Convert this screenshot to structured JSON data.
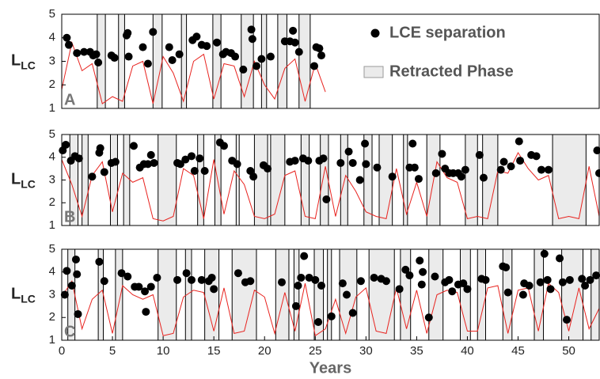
{
  "chart_data": [
    {
      "type": "line",
      "panel_label": "A",
      "ylabel": "L",
      "ylabel_sub": "LC",
      "xlim": [
        0,
        53
      ],
      "ylim": [
        1,
        5
      ],
      "yticks": [
        1,
        2,
        3,
        4,
        5
      ],
      "line": {
        "color": "#e8231f",
        "x": [
          0,
          1,
          2,
          3,
          4,
          5,
          6,
          7,
          8,
          9,
          10,
          11,
          12,
          13,
          14,
          15,
          16,
          17,
          18,
          19,
          20,
          21,
          22,
          23,
          24,
          25,
          26
        ],
        "values": [
          1.8,
          3.8,
          2.6,
          2.9,
          1.2,
          1.5,
          1.3,
          2.8,
          3.0,
          1.2,
          3.2,
          2.5,
          1.3,
          3.0,
          3.3,
          1.4,
          2.9,
          2.8,
          1.5,
          3.0,
          2.0,
          1.4,
          2.7,
          3.1,
          1.3,
          2.9,
          1.7
        ]
      },
      "points": {
        "name": "LCE separation",
        "color": "#000000",
        "x": [
          0.5,
          0.7,
          1.5,
          2.2,
          2.8,
          3.1,
          3.4,
          3.6,
          4.9,
          5.2,
          6.4,
          6.5,
          6.6,
          8.0,
          8.5,
          9.0,
          10.6,
          10.9,
          11.6,
          12.9,
          13.3,
          13.8,
          14.3,
          15.3,
          15.9,
          16.2,
          16.7,
          17.1,
          17.9,
          18.7,
          18.8,
          19.2,
          19.7,
          20.6,
          22.0,
          22.5,
          22.8,
          23.0,
          23.4,
          24.9,
          25.1,
          25.4,
          25.6
        ],
        "values": [
          4.0,
          3.7,
          3.35,
          3.4,
          3.4,
          3.25,
          3.3,
          2.95,
          3.25,
          3.15,
          4.1,
          4.2,
          3.2,
          3.6,
          2.9,
          4.25,
          3.6,
          3.05,
          3.3,
          3.9,
          4.05,
          3.7,
          3.65,
          3.8,
          3.3,
          3.4,
          3.35,
          3.2,
          2.65,
          4.35,
          3.95,
          2.8,
          3.1,
          3.2,
          3.85,
          3.85,
          4.3,
          3.8,
          3.4,
          2.8,
          3.6,
          3.55,
          3.25
        ]
      },
      "phases": {
        "name": "Retracted Phase",
        "color": "#ebebeb",
        "intervals": [
          [
            3.5,
            4.3
          ],
          [
            5.6,
            6.2
          ],
          [
            9.0,
            9.9
          ],
          [
            11.8,
            12.3
          ],
          [
            14.9,
            15.7
          ],
          [
            17.7,
            18.9
          ],
          [
            19.7,
            20.2
          ],
          [
            21.3,
            22.2
          ],
          [
            23.4,
            24.5
          ]
        ]
      }
    },
    {
      "type": "line",
      "panel_label": "B",
      "ylabel": "L",
      "ylabel_sub": "LC",
      "xlim": [
        0,
        53
      ],
      "ylim": [
        1,
        5
      ],
      "yticks": [
        1,
        2,
        3,
        4,
        5
      ],
      "line": {
        "color": "#e8231f",
        "x": [
          0,
          1,
          2,
          3,
          4,
          5,
          6,
          7,
          8,
          9,
          10,
          11,
          12,
          13,
          14,
          15,
          16,
          17,
          18,
          19,
          20,
          21,
          22,
          23,
          24,
          25,
          26,
          27,
          28,
          29,
          30,
          31,
          32,
          33,
          34,
          35,
          36,
          37,
          38,
          39,
          40,
          41,
          42,
          43,
          44,
          45,
          46,
          47,
          48,
          49,
          50,
          51,
          52,
          53
        ],
        "values": [
          3.9,
          2.8,
          1.4,
          3.2,
          3.8,
          1.6,
          3.3,
          2.9,
          3.1,
          1.3,
          1.2,
          1.4,
          3.5,
          3.2,
          1.3,
          3.9,
          1.5,
          3.4,
          2.8,
          1.4,
          1.3,
          1.5,
          3.2,
          3.4,
          1.4,
          1.3,
          3.6,
          1.4,
          3.2,
          2.5,
          1.6,
          1.4,
          1.3,
          3.5,
          1.5,
          2.9,
          1.4,
          3.8,
          3.1,
          2.9,
          1.3,
          1.4,
          1.3,
          3.4,
          3.3,
          4.2,
          3.5,
          3.0,
          3.2,
          1.3,
          1.4,
          1.3,
          3.6,
          1.4
        ]
      },
      "points": {
        "color": "#000000",
        "x": [
          0.1,
          0.4,
          0.9,
          1.3,
          1.7,
          3.0,
          3.7,
          3.8,
          4.2,
          4.9,
          5.3,
          7.1,
          7.7,
          8.1,
          8.5,
          8.8,
          9.1,
          11.4,
          11.7,
          12.2,
          12.8,
          13.1,
          13.6,
          14.1,
          15.6,
          16.0,
          16.8,
          17.3,
          18.6,
          18.9,
          19.9,
          20.3,
          22.5,
          23.0,
          23.8,
          24.3,
          25.4,
          25.8,
          26.1,
          27.5,
          28.3,
          28.7,
          29.4,
          29.9,
          30.0,
          31.1,
          32.6,
          34.3,
          34.6,
          34.8,
          35.2,
          36.9,
          37.5,
          37.8,
          38.2,
          38.6,
          39.1,
          39.4,
          39.8,
          41.2,
          41.6,
          43.3,
          43.6,
          44.3,
          45.1,
          45.2,
          46.3,
          46.8,
          47.3,
          48.0,
          52.8,
          53.0
        ],
        "values": [
          4.3,
          4.55,
          3.85,
          4.05,
          3.95,
          3.15,
          4.2,
          4.4,
          3.35,
          3.75,
          3.8,
          4.5,
          3.55,
          3.7,
          3.7,
          4.1,
          3.75,
          3.75,
          3.7,
          3.9,
          4.05,
          3.4,
          3.95,
          3.4,
          4.65,
          4.5,
          3.85,
          3.7,
          3.4,
          3.15,
          3.65,
          3.5,
          3.8,
          3.85,
          3.95,
          3.85,
          3.85,
          3.95,
          2.15,
          3.75,
          4.25,
          3.75,
          3.0,
          4.6,
          3.7,
          3.55,
          3.15,
          3.55,
          4.6,
          3.55,
          3.05,
          3.3,
          4.15,
          3.5,
          3.3,
          3.3,
          3.3,
          3.15,
          3.45,
          4.1,
          3.1,
          3.45,
          3.8,
          3.6,
          4.7,
          3.85,
          4.1,
          4.05,
          3.45,
          3.45,
          4.3,
          3.3
        ]
      },
      "phases": {
        "color": "#ebebeb",
        "intervals": [
          [
            0.8,
            1.6
          ],
          [
            2.0,
            2.6
          ],
          [
            4.8,
            5.5
          ],
          [
            6.1,
            6.7
          ],
          [
            9.5,
            11.3
          ],
          [
            13.4,
            14.0
          ],
          [
            15.1,
            15.7
          ],
          [
            17.2,
            17.5
          ],
          [
            19.0,
            20.3
          ],
          [
            20.6,
            22.0
          ],
          [
            23.6,
            24.4
          ],
          [
            25.5,
            26.3
          ],
          [
            27.5,
            28.2
          ],
          [
            29.8,
            30.6
          ],
          [
            31.3,
            32.6
          ],
          [
            33.7,
            34.1
          ],
          [
            36.0,
            37.3
          ],
          [
            39.8,
            41.0
          ],
          [
            41.5,
            43.0
          ],
          [
            48.4,
            51.7
          ]
        ]
      }
    },
    {
      "type": "line",
      "panel_label": "C",
      "ylabel": "L",
      "ylabel_sub": "LC",
      "xlabel": "Years",
      "xlim": [
        0,
        53
      ],
      "ylim": [
        1,
        5
      ],
      "yticks": [
        1,
        2,
        3,
        4,
        5
      ],
      "xticks": [
        0,
        5,
        10,
        15,
        20,
        25,
        30,
        35,
        40,
        45,
        50
      ],
      "line": {
        "color": "#e8231f",
        "x": [
          0,
          1,
          2,
          3,
          4,
          5,
          6,
          7,
          8,
          9,
          10,
          11,
          12,
          13,
          14,
          15,
          16,
          17,
          18,
          19,
          20,
          21,
          22,
          23,
          24,
          25,
          26,
          27,
          28,
          29,
          30,
          31,
          32,
          33,
          34,
          35,
          36,
          37,
          38,
          39,
          40,
          41,
          42,
          43,
          44,
          45,
          46,
          47,
          48,
          49,
          50,
          51,
          52,
          53
        ],
        "values": [
          2.9,
          3.6,
          1.5,
          2.8,
          3.2,
          1.3,
          3.4,
          3.0,
          2.8,
          3.0,
          1.2,
          1.3,
          2.9,
          3.2,
          3.1,
          1.4,
          3.3,
          1.3,
          1.4,
          3.2,
          2.9,
          1.3,
          3.1,
          1.4,
          3.5,
          1.2,
          1.5,
          2.8,
          1.3,
          2.9,
          3.3,
          1.4,
          1.3,
          3.3,
          1.5,
          3.2,
          1.3,
          3.0,
          3.2,
          3.1,
          1.4,
          1.4,
          3.3,
          3.4,
          1.3,
          3.2,
          3.3,
          1.4,
          3.5,
          3.1,
          1.4,
          3.3,
          1.5,
          2.4
        ]
      },
      "points": {
        "color": "#000000",
        "x": [
          0.3,
          0.5,
          1.0,
          1.4,
          1.5,
          1.6,
          3.7,
          4.2,
          5.9,
          6.5,
          7.2,
          7.6,
          8.2,
          8.3,
          8.8,
          9.4,
          11.4,
          12.3,
          12.8,
          13.8,
          14.5,
          14.8,
          15.0,
          17.4,
          18.1,
          18.6,
          21.7,
          23.1,
          23.3,
          23.6,
          23.9,
          24.4,
          25.0,
          25.3,
          25.6,
          26.6,
          27.7,
          28.1,
          28.7,
          29.5,
          30.8,
          31.5,
          32.0,
          33.3,
          33.9,
          34.3,
          35.3,
          35.5,
          35.6,
          36.2,
          36.8,
          37.8,
          38.2,
          38.5,
          39.1,
          39.6,
          40.0,
          41.4,
          41.8,
          43.5,
          43.8,
          44.0,
          45.5,
          45.6,
          46.1,
          47.2,
          47.6,
          47.9,
          48.2,
          49.1,
          49.4,
          49.8,
          50.1,
          51.3,
          51.6,
          52.1,
          52.7
        ],
        "values": [
          3.0,
          4.05,
          3.4,
          4.55,
          3.9,
          2.15,
          4.45,
          3.6,
          3.95,
          3.8,
          3.35,
          3.35,
          3.15,
          2.25,
          3.35,
          3.75,
          3.65,
          3.95,
          3.65,
          3.65,
          3.6,
          3.75,
          3.25,
          3.95,
          3.55,
          3.6,
          3.55,
          2.5,
          3.4,
          3.75,
          4.7,
          3.75,
          3.65,
          1.8,
          3.4,
          2.05,
          3.5,
          3.0,
          2.2,
          3.6,
          3.75,
          3.7,
          3.6,
          3.25,
          4.1,
          3.85,
          4.5,
          3.45,
          4.0,
          2.0,
          3.8,
          3.55,
          3.65,
          3.15,
          3.45,
          3.5,
          3.25,
          3.7,
          3.65,
          4.25,
          4.2,
          3.1,
          3.0,
          3.5,
          3.4,
          3.55,
          4.8,
          3.65,
          3.25,
          4.6,
          3.55,
          1.9,
          3.65,
          3.7,
          3.4,
          3.65,
          3.85
        ]
      },
      "phases": {
        "color": "#ebebeb",
        "intervals": [
          [
            0.6,
            1.3
          ],
          [
            3.6,
            4.1
          ],
          [
            5.3,
            6.0
          ],
          [
            9.5,
            11.3
          ],
          [
            12.2,
            12.8
          ],
          [
            14.1,
            15.5
          ],
          [
            16.8,
            19.2
          ],
          [
            21.1,
            22.4
          ],
          [
            22.9,
            23.4
          ],
          [
            24.9,
            25.8
          ],
          [
            26.2,
            26.6
          ],
          [
            27.4,
            29.1
          ],
          [
            30.3,
            32.8
          ],
          [
            33.4,
            34.4
          ],
          [
            36.2,
            37.6
          ],
          [
            39.3,
            40.3
          ],
          [
            41.0,
            41.8
          ],
          [
            43.5,
            44.4
          ],
          [
            46.6,
            47.5
          ],
          [
            49.3,
            51.4
          ],
          [
            52.2,
            53.0
          ]
        ]
      }
    }
  ]
}
